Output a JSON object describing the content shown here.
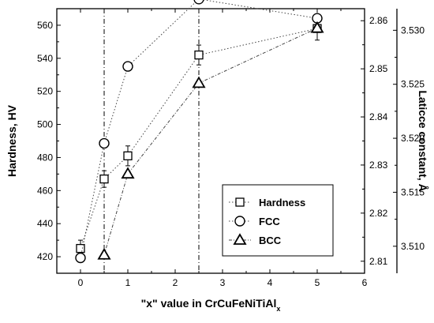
{
  "chart_data": {
    "type": "scatter",
    "x_label": "\"x\" value in CrCuFeNiTiAl",
    "x_label_subscript": "x",
    "y_label_left": "Hardness, HV",
    "y_label_right": "Laticce constant, Å",
    "x_ticks": [
      "0",
      "1",
      "2",
      "3",
      "4",
      "5",
      "6"
    ],
    "y_left_ticks": [
      "420",
      "440",
      "460",
      "480",
      "500",
      "520",
      "540",
      "560"
    ],
    "y_mid_ticks": [
      "2.81",
      "2.82",
      "2.83",
      "2.84",
      "2.85",
      "2.86"
    ],
    "y_right_ticks": [
      "3.510",
      "3.515",
      "3.520",
      "3.525",
      "3.530"
    ],
    "x_range": [
      -0.5,
      6
    ],
    "y_left_range": [
      410,
      570
    ],
    "y_mid_range": [
      2.8075,
      2.8625
    ],
    "y_right_range": [
      3.5075,
      3.532
    ],
    "vertical_reference_lines": [
      0.5,
      2.5
    ],
    "legend_position": "lower-right",
    "series": [
      {
        "name": "Hardness",
        "axis": "left",
        "marker": "square",
        "line": "dotted",
        "x": [
          0,
          0.5,
          1,
          2.5,
          5
        ],
        "y": [
          425,
          467,
          481,
          542,
          558
        ],
        "error": [
          5,
          5,
          6,
          6,
          7
        ]
      },
      {
        "name": "FCC",
        "axis": "mid",
        "marker": "circle",
        "line": "dotted",
        "x": [
          0,
          0.5,
          1,
          2.5,
          5
        ],
        "y": [
          2.8107,
          2.8345,
          2.8505,
          2.8645,
          2.8605
        ]
      },
      {
        "name": "BCC",
        "axis": "right",
        "marker": "triangle",
        "line": "dash-dot",
        "x": [
          0.5,
          1,
          2.5,
          5
        ],
        "y": [
          3.5092,
          3.5167,
          3.5251,
          3.5302
        ]
      }
    ]
  }
}
